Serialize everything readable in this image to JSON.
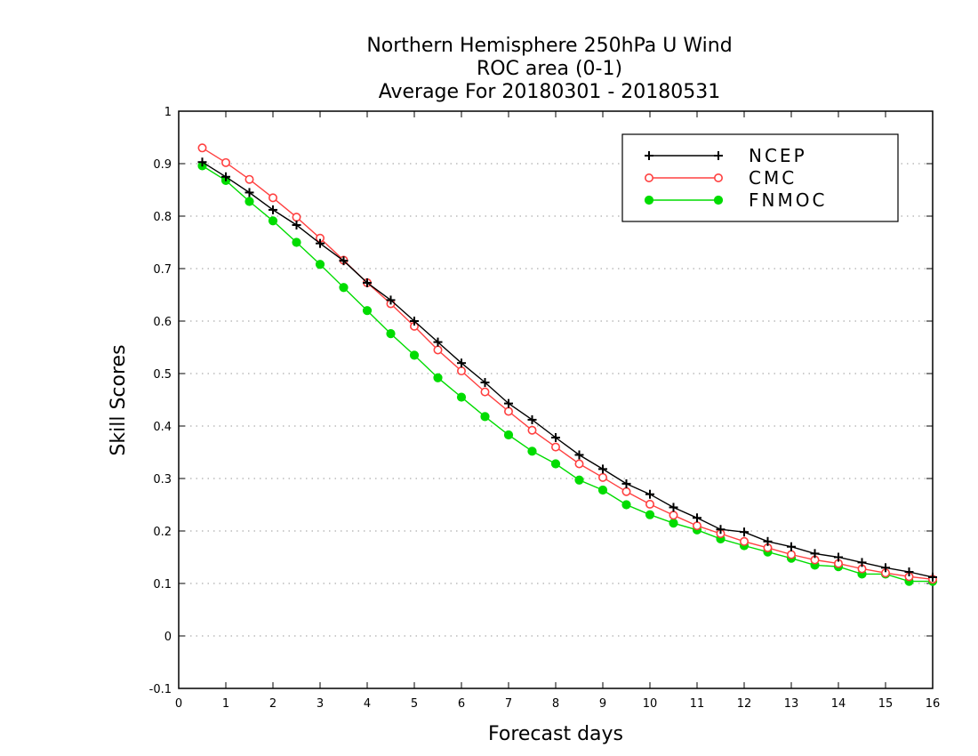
{
  "chart_data": {
    "type": "line",
    "title_lines": [
      "Northern Hemisphere 250hPa U Wind",
      "ROC area (0-1)",
      "Average For 20180301 - 20180531"
    ],
    "xlabel": "Forecast days",
    "ylabel": "Skill Scores",
    "xlim": [
      0,
      16
    ],
    "ylim": [
      -0.1,
      1
    ],
    "x_ticks": [
      0,
      1,
      2,
      3,
      4,
      5,
      6,
      7,
      8,
      9,
      10,
      11,
      12,
      13,
      14,
      15,
      16
    ],
    "y_ticks": [
      -0.1,
      0,
      0.1,
      0.2,
      0.3,
      0.4,
      0.5,
      0.6,
      0.7,
      0.8,
      0.9,
      1
    ],
    "y_tick_labels": [
      "-0.1",
      "0",
      "0.1",
      "0.2",
      "0.3",
      "0.4",
      "0.5",
      "0.6",
      "0.7",
      "0.8",
      "0.9",
      "1"
    ],
    "grid": "horizontal-dotted",
    "legend_position": "top-right",
    "x": [
      0.5,
      1,
      1.5,
      2,
      2.5,
      3,
      3.5,
      4,
      4.5,
      5,
      5.5,
      6,
      6.5,
      7,
      7.5,
      8,
      8.5,
      9,
      9.5,
      10,
      10.5,
      11,
      11.5,
      12,
      12.5,
      13,
      13.5,
      14,
      14.5,
      15,
      15.5,
      16
    ],
    "series": [
      {
        "name": "NCEP",
        "color": "#000000",
        "marker": "plus",
        "values": [
          0.903,
          0.875,
          0.845,
          0.812,
          0.783,
          0.748,
          0.715,
          0.673,
          0.64,
          0.6,
          0.56,
          0.52,
          0.483,
          0.443,
          0.412,
          0.378,
          0.345,
          0.318,
          0.29,
          0.27,
          0.245,
          0.225,
          0.203,
          0.198,
          0.18,
          0.17,
          0.157,
          0.15,
          0.14,
          0.13,
          0.122,
          0.112
        ]
      },
      {
        "name": "CMC",
        "color": "#ff4040",
        "marker": "hollow-circle",
        "values": [
          0.93,
          0.902,
          0.87,
          0.835,
          0.798,
          0.758,
          0.716,
          0.673,
          0.633,
          0.59,
          0.545,
          0.505,
          0.465,
          0.428,
          0.392,
          0.36,
          0.328,
          0.302,
          0.275,
          0.251,
          0.23,
          0.21,
          0.195,
          0.18,
          0.168,
          0.155,
          0.145,
          0.138,
          0.128,
          0.12,
          0.113,
          0.108
        ]
      },
      {
        "name": "FNMOC",
        "color": "#00dc00",
        "marker": "filled-circle",
        "values": [
          0.896,
          0.868,
          0.828,
          0.791,
          0.75,
          0.708,
          0.664,
          0.62,
          0.576,
          0.535,
          0.492,
          0.455,
          0.418,
          0.383,
          0.352,
          0.328,
          0.297,
          0.278,
          0.25,
          0.231,
          0.215,
          0.202,
          0.185,
          0.172,
          0.16,
          0.148,
          0.135,
          0.132,
          0.118,
          0.118,
          0.104,
          0.104
        ]
      }
    ]
  }
}
